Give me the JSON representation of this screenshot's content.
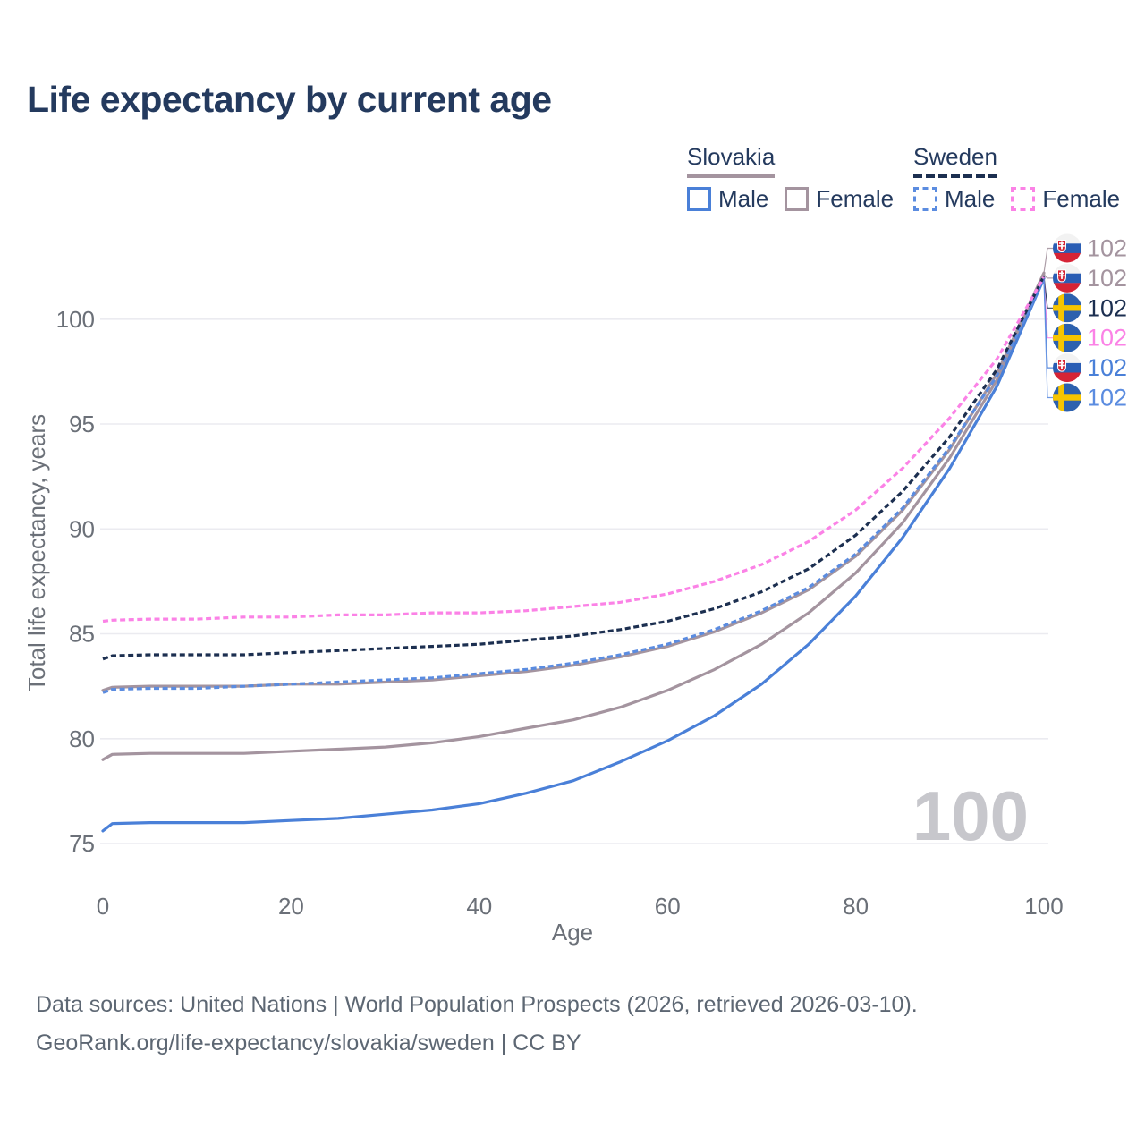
{
  "title": "Life expectancy by current age",
  "age_watermark": "100",
  "colors": {
    "text": "#243a5e",
    "navy": "#1c2f50",
    "blue": "#4a80d8",
    "blue2": "#5b8ce0",
    "mauve": "#a4949f",
    "pink": "#fb82e6",
    "grid": "#ebebf0",
    "axis": "#6b7078",
    "watermark": "#c7c7cc",
    "footer": "#5d6773"
  },
  "legend": {
    "groups": [
      {
        "country": "Slovakia",
        "underline_style": "solid",
        "underline_color_key": "mauve",
        "items": [
          {
            "label": "Male",
            "color_key": "blue",
            "dashed": false
          },
          {
            "label": "Female",
            "color_key": "mauve",
            "dashed": false
          }
        ]
      },
      {
        "country": "Sweden",
        "underline_style": "dashed",
        "underline_color_key": "navy",
        "items": [
          {
            "label": "Male",
            "color_key": "blue2",
            "dashed": true
          },
          {
            "label": "Female",
            "color_key": "pink",
            "dashed": true
          }
        ]
      }
    ]
  },
  "footer": {
    "line1": "Data sources: United Nations | World Population Prospects (2026, retrieved 2026-03-10).",
    "line2": "GeoRank.org/life-expectancy/slovakia/sweden | CC BY"
  },
  "chart_data": {
    "type": "line",
    "title": "Life expectancy by current age",
    "xlabel": "Age",
    "ylabel": "Total life expectancy, years",
    "xlim": [
      0,
      100
    ],
    "ylim": [
      74,
      103
    ],
    "x_ticks": [
      0,
      20,
      40,
      60,
      80,
      100
    ],
    "y_ticks": [
      75,
      80,
      85,
      90,
      95,
      100
    ],
    "grid": true,
    "legend_position": "top-right",
    "x": [
      0,
      1,
      5,
      10,
      15,
      20,
      25,
      30,
      35,
      40,
      45,
      50,
      55,
      60,
      65,
      70,
      75,
      80,
      85,
      90,
      95,
      100
    ],
    "series": [
      {
        "id": "sk-female",
        "name": "Slovakia Female",
        "flag": "sk",
        "color_key": "mauve",
        "dashed": false,
        "end_label": "102",
        "values": [
          82.3,
          82.45,
          82.5,
          82.5,
          82.5,
          82.6,
          82.6,
          82.7,
          82.8,
          83.0,
          83.2,
          83.5,
          83.9,
          84.4,
          85.1,
          86.0,
          87.1,
          88.7,
          90.9,
          93.8,
          97.4,
          102.2
        ]
      },
      {
        "id": "sk-all",
        "name": "Slovakia (both sexes)",
        "flag": "sk",
        "color_key": "mauve",
        "dashed": false,
        "end_label": "102",
        "values": [
          79.0,
          79.25,
          79.3,
          79.3,
          79.3,
          79.4,
          79.5,
          79.6,
          79.8,
          80.1,
          80.5,
          80.9,
          81.5,
          82.3,
          83.3,
          84.5,
          86.0,
          87.9,
          90.3,
          93.4,
          97.1,
          102.1
        ]
      },
      {
        "id": "se-all",
        "name": "Sweden (both sexes)",
        "flag": "se",
        "color_key": "navy",
        "dashed": true,
        "end_label": "102",
        "values": [
          83.8,
          83.95,
          84.0,
          84.0,
          84.0,
          84.1,
          84.2,
          84.3,
          84.4,
          84.5,
          84.7,
          84.9,
          85.2,
          85.6,
          86.2,
          87.0,
          88.1,
          89.7,
          91.8,
          94.4,
          97.6,
          102.05
        ]
      },
      {
        "id": "se-female",
        "name": "Sweden Female",
        "flag": "se",
        "color_key": "pink",
        "dashed": true,
        "end_label": "102",
        "values": [
          85.6,
          85.65,
          85.7,
          85.7,
          85.8,
          85.8,
          85.9,
          85.9,
          86.0,
          86.0,
          86.1,
          86.3,
          86.5,
          86.9,
          87.5,
          88.3,
          89.4,
          90.9,
          92.9,
          95.3,
          98.1,
          102.0
        ]
      },
      {
        "id": "sk-male",
        "name": "Slovakia Male",
        "flag": "sk",
        "color_key": "blue",
        "dashed": false,
        "end_label": "102",
        "values": [
          75.6,
          75.95,
          76.0,
          76.0,
          76.0,
          76.1,
          76.2,
          76.4,
          76.6,
          76.9,
          77.4,
          78.0,
          78.9,
          79.9,
          81.1,
          82.6,
          84.5,
          86.8,
          89.6,
          92.9,
          96.8,
          101.95
        ]
      },
      {
        "id": "se-male",
        "name": "Sweden Male",
        "flag": "se",
        "color_key": "blue2",
        "dashed": true,
        "end_label": "102",
        "values": [
          82.2,
          82.35,
          82.4,
          82.4,
          82.5,
          82.6,
          82.7,
          82.8,
          82.9,
          83.1,
          83.3,
          83.6,
          84.0,
          84.5,
          85.2,
          86.1,
          87.2,
          88.8,
          91.0,
          93.9,
          97.3,
          101.9
        ]
      }
    ],
    "draw_order": [
      "sk-all",
      "sk-female",
      "sk-male",
      "se-male",
      "se-all",
      "se-female"
    ]
  }
}
